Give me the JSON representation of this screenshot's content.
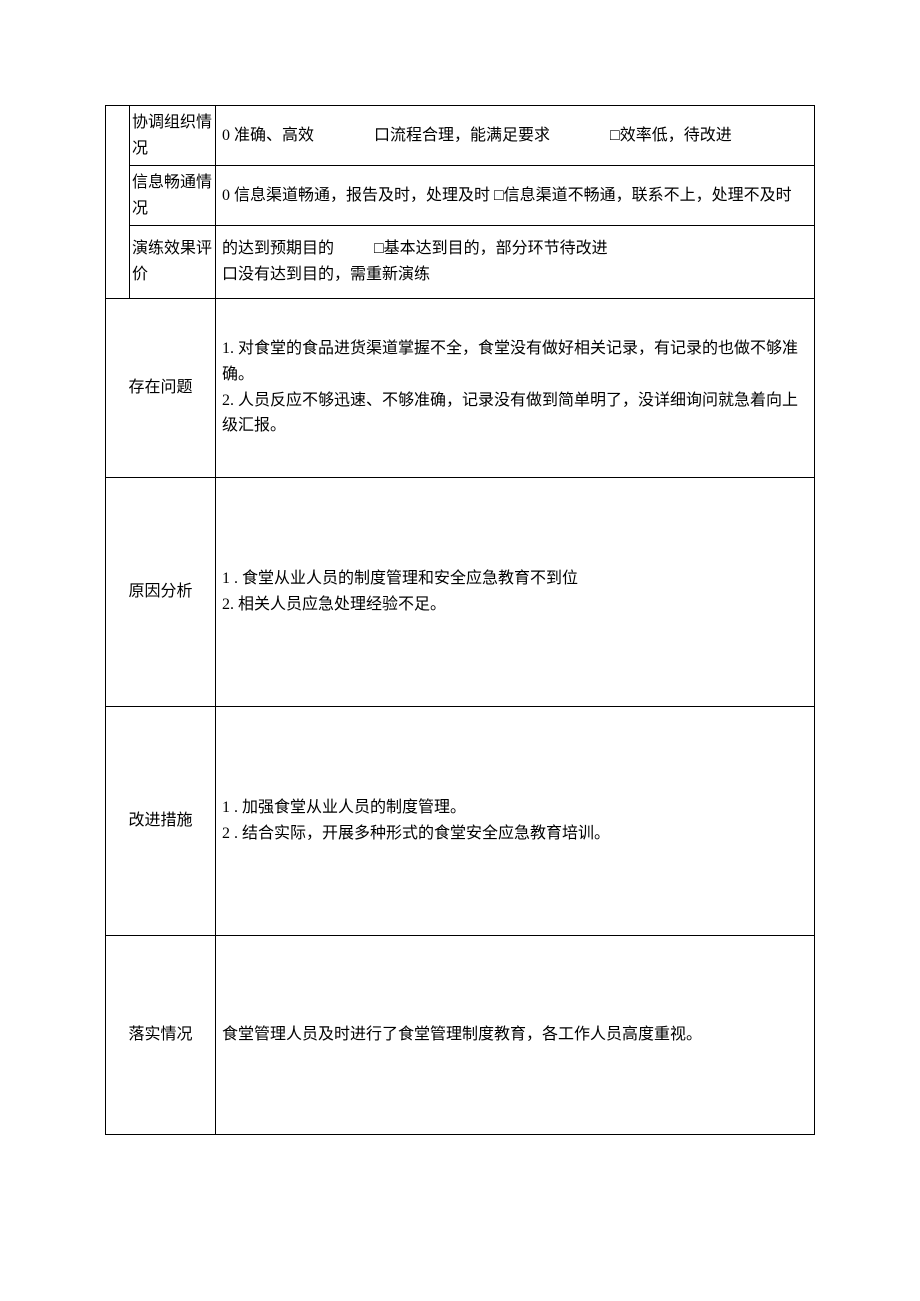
{
  "colors": {
    "border": "#000000",
    "text": "#000000",
    "background": "#ffffff"
  },
  "typography": {
    "fontFamily": "SimSun",
    "fontSizePx": 16,
    "lineHeight": 1.6
  },
  "table": {
    "columnWidthsPx": [
      24,
      86,
      600
    ],
    "rows": [
      {
        "label": "协调组织情况",
        "options": [
          "0 准确、高效",
          "口流程合理，能满足要求",
          "□效率低，待改进"
        ]
      },
      {
        "label": "信息畅通情况",
        "options": [
          "0 信息渠道畅通，报告及时，处理及时",
          "□信息渠道不畅通，联系不上，处理不及时"
        ]
      },
      {
        "label": "演练效果评价",
        "options_row1": [
          "的达到预期目的",
          "□基本达到目的，部分环节待改进"
        ],
        "options_row2": [
          "口没有达到目的，需重新演练"
        ]
      }
    ],
    "sections": {
      "problems": {
        "label": "存在问题",
        "lines": [
          "1. 对食堂的食品进货渠道掌握不全，食堂没有做好相关记录，有记录的也做不够准确。",
          "2. 人员反应不够迅速、不够准确，记录没有做到简单明了，没详细询问就急着向上级汇报。"
        ]
      },
      "causes": {
        "label": "原因分析",
        "lines": [
          "1      . 食堂从业人员的制度管理和安全应急教育不到位",
          "2. 相关人员应急处理经验不足。"
        ]
      },
      "improve": {
        "label": "改进措施",
        "lines": [
          "1        . 加强食堂从业人员的制度管理。",
          "2        . 结合实际，开展多种形式的食堂安全应急教育培训。"
        ]
      },
      "implement": {
        "label": "落实情况",
        "text": "食堂管理人员及时进行了食堂管理制度教育，各工作人员高度重视。"
      }
    }
  }
}
